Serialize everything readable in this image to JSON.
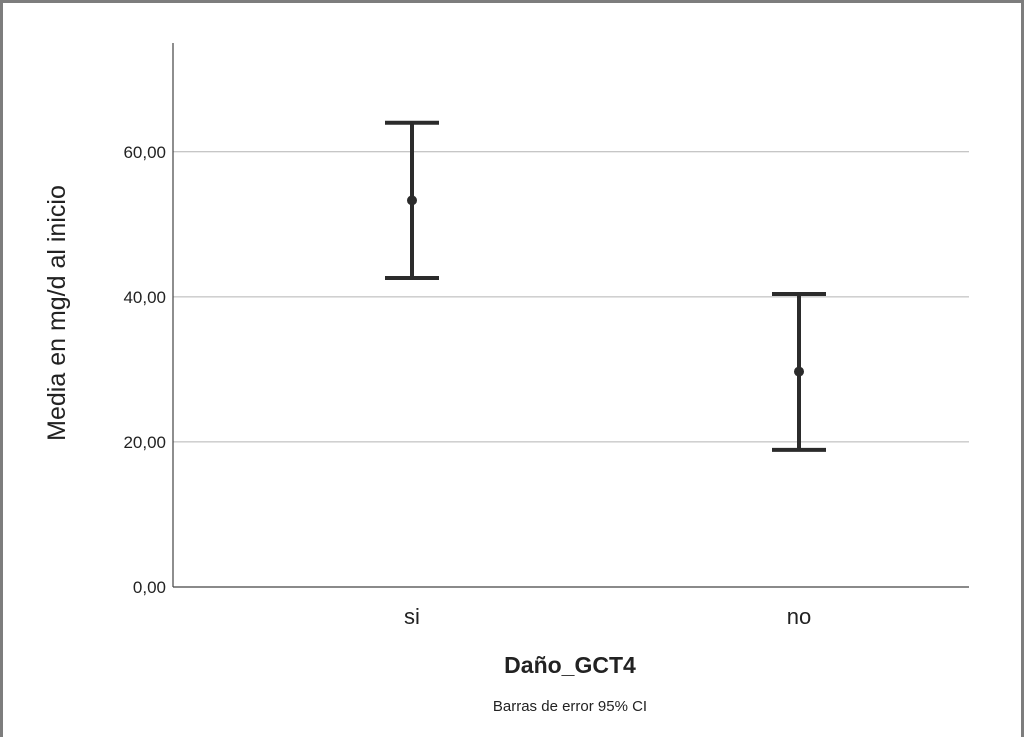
{
  "chart_data": {
    "type": "errorbar",
    "categories": [
      "si",
      "no"
    ],
    "means": [
      53.3,
      29.7
    ],
    "ci_low": [
      42.6,
      18.9
    ],
    "ci_high": [
      64.0,
      40.4
    ],
    "ylim": [
      0,
      75
    ],
    "yticks": [
      0,
      20,
      40,
      60
    ],
    "ytick_labels": [
      "0,00",
      "20,00",
      "40,00",
      "60,00"
    ],
    "xlabel": "Daño_GCT4",
    "ylabel": "Media en mg/d al inicio",
    "footnote": "Barras de error 95% CI",
    "grid": true,
    "colors": {
      "series": "#2b2b2b",
      "grid": "#b4b4b4",
      "axis": "#444444",
      "frame": "#7d7d7d"
    }
  }
}
